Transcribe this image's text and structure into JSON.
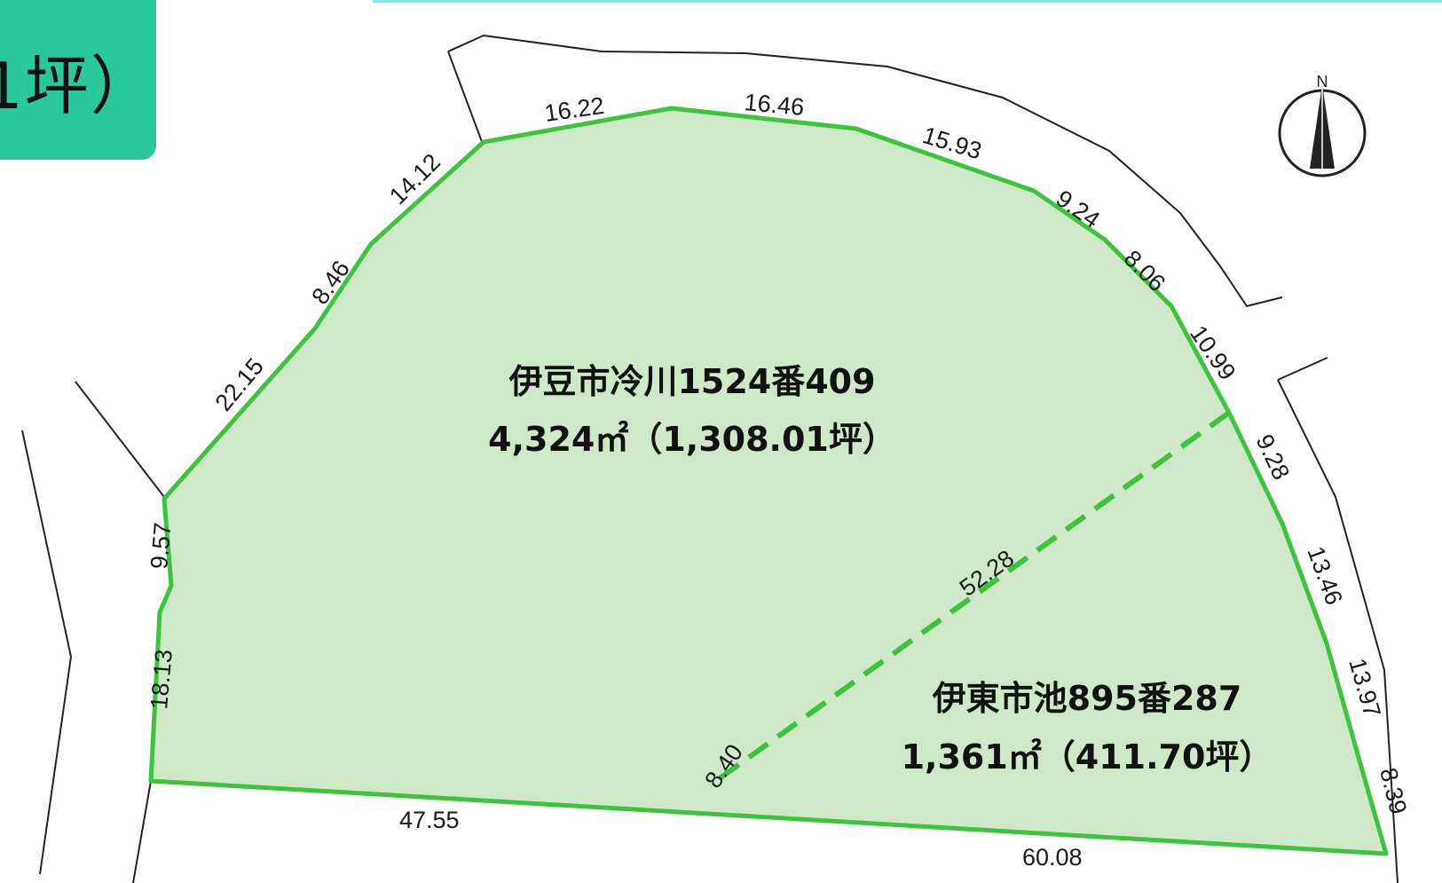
{
  "badge": {
    "text": "1坪）"
  },
  "colors": {
    "parcel_fill": "#cfe8c8",
    "boundary": "#3cc43c",
    "badge": "#2ac99c",
    "road_line": "#222222"
  },
  "compass": {
    "label": "N"
  },
  "lots": [
    {
      "address": "伊豆市冷川1524番409",
      "area": "4,324㎡（1,308.01坪）"
    },
    {
      "address": "伊東市池895番287",
      "area": "1,361㎡（411.70坪）"
    }
  ],
  "dimensions": {
    "d1": "16.22",
    "d2": "16.46",
    "d3": "15.93",
    "d4": "9.24",
    "d5": "8.06",
    "d6": "10.99",
    "d7": "9.28",
    "d8": "13.46",
    "d9": "13.97",
    "d10": "8.39",
    "d11": "60.08",
    "d12": "47.55",
    "d13": "8.40",
    "d14": "52.28",
    "d15": "18.13",
    "d16": "9.57",
    "d17": "22.15",
    "d18": "8.46",
    "d19": "14.12"
  }
}
